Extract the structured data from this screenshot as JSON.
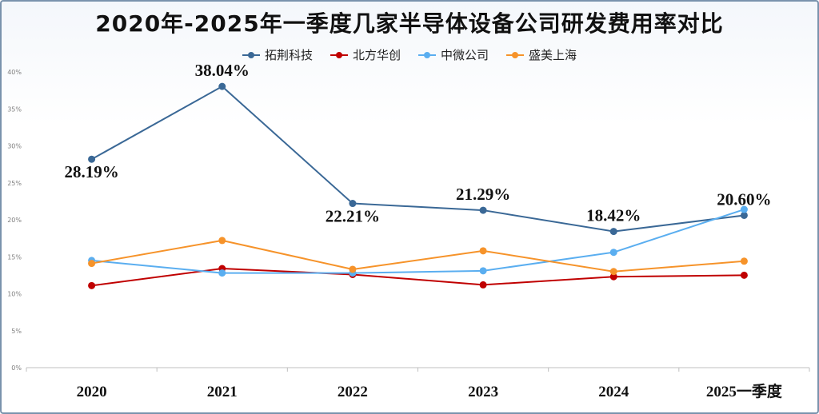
{
  "chart_data": {
    "type": "line",
    "title": "2020年-2025年一季度几家半导体设备公司研发费用率对比",
    "xlabel": "",
    "ylabel": "",
    "categories": [
      "2020",
      "2021",
      "2022",
      "2023",
      "2024",
      "2025一季度"
    ],
    "ylim": [
      0,
      40
    ],
    "yticks": [
      "0%",
      "5%",
      "10%",
      "15%",
      "20%",
      "25%",
      "30%",
      "35%",
      "40%"
    ],
    "grid": false,
    "legend_position": "top",
    "series": [
      {
        "name": "拓荆科技",
        "color": "#3a6896",
        "values": [
          28.19,
          38.04,
          22.21,
          21.29,
          18.42,
          20.6
        ],
        "labels": [
          "28.19%",
          "38.04%",
          "22.21%",
          "21.29%",
          "18.42%",
          "20.60%"
        ]
      },
      {
        "name": "北方华创",
        "color": "#c00000",
        "values": [
          11.1,
          13.4,
          12.6,
          11.2,
          12.3,
          12.5
        ]
      },
      {
        "name": "中微公司",
        "color": "#5aaef0",
        "values": [
          14.5,
          12.8,
          12.8,
          13.1,
          15.6,
          21.4
        ]
      },
      {
        "name": "盛美上海",
        "color": "#f6932a",
        "values": [
          14.1,
          17.2,
          13.3,
          15.8,
          13.0,
          14.4
        ]
      }
    ]
  }
}
